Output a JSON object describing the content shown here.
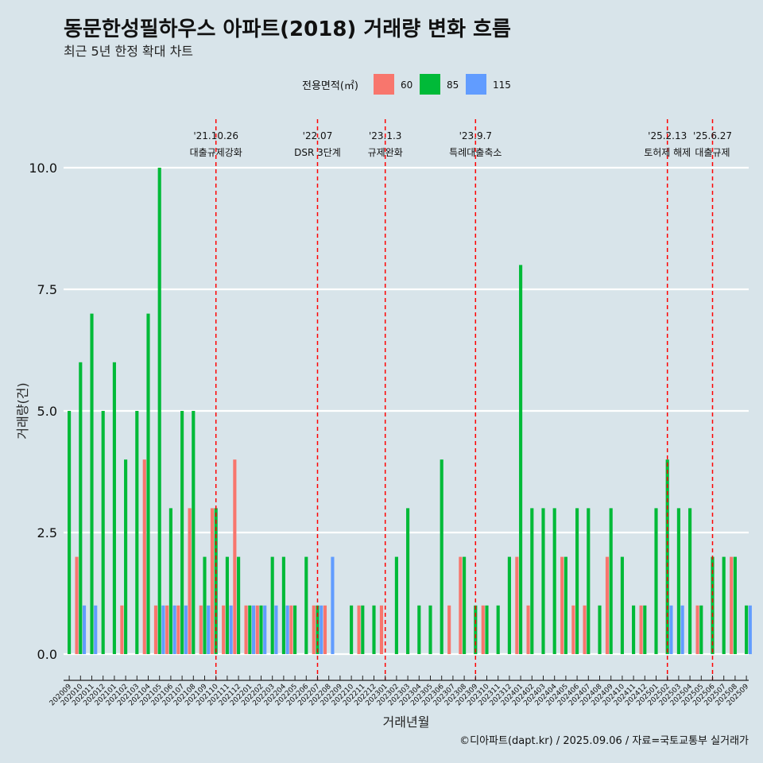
{
  "chart_data": {
    "type": "bar",
    "title": "동문한성필하우스 아파트(2018) 거래량 변화 흐름",
    "subtitle": "최근 5년 한정 확대 차트",
    "xlabel": "거래년월",
    "ylabel": "거래량(건)",
    "ylim": [
      0,
      10
    ],
    "yticks": [
      "0.0",
      "2.5",
      "5.0",
      "7.5",
      "10.0"
    ],
    "legend": {
      "title": "전용면적(㎡)",
      "position": "top"
    },
    "categories": [
      "202009",
      "202010",
      "202011",
      "202012",
      "202101",
      "202102",
      "202103",
      "202104",
      "202105",
      "202106",
      "202107",
      "202108",
      "202109",
      "202110",
      "202111",
      "202112",
      "202201",
      "202202",
      "202203",
      "202204",
      "202205",
      "202206",
      "202207",
      "202208",
      "202209",
      "202210",
      "202211",
      "202212",
      "202301",
      "202302",
      "202303",
      "202304",
      "202305",
      "202306",
      "202307",
      "202308",
      "202309",
      "202310",
      "202311",
      "202312",
      "202401",
      "202402",
      "202403",
      "202404",
      "202405",
      "202406",
      "202407",
      "202408",
      "202409",
      "202410",
      "202411",
      "202412",
      "202501",
      "202502",
      "202503",
      "202504",
      "202505",
      "202506",
      "202507",
      "202508",
      "202509"
    ],
    "series": [
      {
        "name": "60",
        "color": "#f8766d",
        "values": [
          0,
          2,
          0,
          0,
          0,
          1,
          0,
          4,
          1,
          1,
          1,
          3,
          1,
          3,
          1,
          4,
          1,
          1,
          0,
          0,
          1,
          0,
          1,
          1,
          0,
          0,
          1,
          0,
          1,
          0,
          0,
          0,
          0,
          0,
          1,
          2,
          0,
          1,
          0,
          0,
          2,
          1,
          0,
          0,
          2,
          1,
          1,
          0,
          2,
          0,
          0,
          1,
          0,
          0,
          0,
          0,
          1,
          0,
          0,
          2,
          0
        ]
      },
      {
        "name": "85",
        "color": "#00ba38",
        "values": [
          5,
          6,
          7,
          5,
          6,
          4,
          5,
          7,
          10,
          3,
          5,
          5,
          2,
          3,
          2,
          2,
          1,
          1,
          2,
          2,
          1,
          2,
          1,
          0,
          0,
          1,
          1,
          1,
          0,
          2,
          3,
          1,
          1,
          4,
          0,
          2,
          1,
          1,
          1,
          2,
          8,
          3,
          3,
          3,
          2,
          3,
          3,
          1,
          3,
          2,
          1,
          1,
          3,
          4,
          3,
          3,
          1,
          2,
          2,
          2,
          1
        ]
      },
      {
        "name": "115",
        "color": "#619cff",
        "values": [
          0,
          1,
          1,
          0,
          0,
          0,
          0,
          0,
          1,
          1,
          1,
          0,
          1,
          0,
          1,
          0,
          1,
          1,
          1,
          1,
          0,
          0,
          1,
          2,
          0,
          0,
          0,
          0,
          0,
          0,
          0,
          0,
          0,
          0,
          0,
          0,
          0,
          0,
          0,
          0,
          0,
          0,
          0,
          0,
          0,
          0,
          0,
          0,
          0,
          0,
          0,
          0,
          0,
          1,
          1,
          0,
          0,
          0,
          0,
          0,
          1
        ]
      }
    ],
    "annotations": [
      {
        "date": "'21.10.26",
        "label": "대출규제강화",
        "x": "202110"
      },
      {
        "date": "'22.07",
        "label": "DSR 3단계",
        "x": "202207"
      },
      {
        "date": "'23.1.3",
        "label": "규제완화",
        "x": "202301"
      },
      {
        "date": "'23.9.7",
        "label": "특례대출축소",
        "x": "202309"
      },
      {
        "date": "'25.2.13",
        "label": "토허제 해제",
        "x": "202502"
      },
      {
        "date": "'25.6.27",
        "label": "대출규제",
        "x": "202506"
      }
    ],
    "grid": true
  },
  "caption": "©디아파트(dapt.kr) / 2025.09.06 / 자료=국토교통부 실거래가"
}
